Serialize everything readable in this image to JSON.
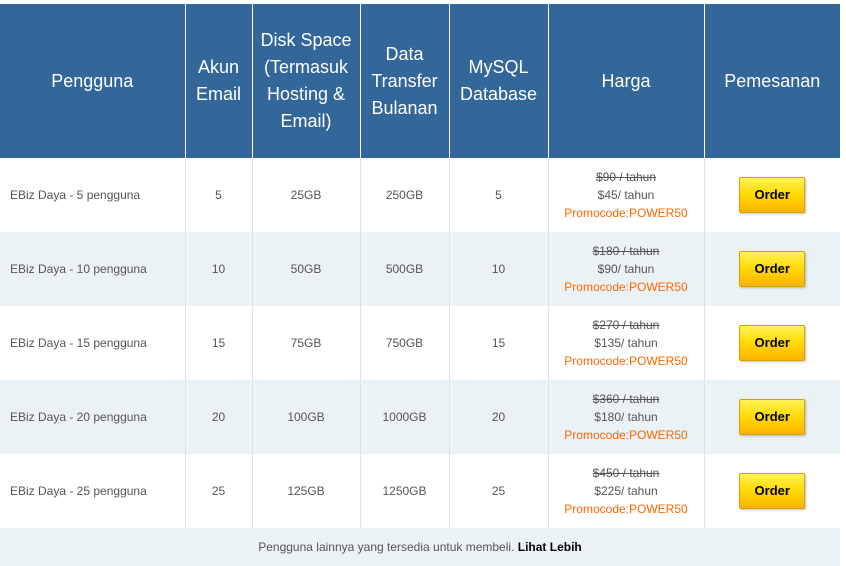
{
  "header": {
    "columns": [
      "Pengguna",
      "Akun Email",
      "Disk Space (Termasuk Hosting & Email)",
      "Data Transfer Bulanan",
      "MySQL Database",
      "Harga",
      "Pemesanan"
    ]
  },
  "rows": [
    {
      "user": "EBiz Daya - 5 pengguna",
      "email": "5",
      "disk": "25GB",
      "transfer": "250GB",
      "mysql": "5",
      "price_old": "$90 / tahun",
      "price_new": "$45/ tahun",
      "promo": "Promocode:POWER50",
      "order": "Order"
    },
    {
      "user": "EBiz Daya - 10 pengguna",
      "email": "10",
      "disk": "50GB",
      "transfer": "500GB",
      "mysql": "10",
      "price_old": "$180 / tahun",
      "price_new": "$90/ tahun",
      "promo": "Promocode:POWER50",
      "order": "Order"
    },
    {
      "user": "EBiz Daya - 15 pengguna",
      "email": "15",
      "disk": "75GB",
      "transfer": "750GB",
      "mysql": "15",
      "price_old": "$270 / tahun",
      "price_new": "$135/ tahun",
      "promo": "Promocode:POWER50",
      "order": "Order"
    },
    {
      "user": "EBiz Daya - 20 pengguna",
      "email": "20",
      "disk": "100GB",
      "transfer": "1000GB",
      "mysql": "20",
      "price_old": "$360 / tahun",
      "price_new": "$180/ tahun",
      "promo": "Promocode:POWER50",
      "order": "Order"
    },
    {
      "user": "EBiz Daya - 25 pengguna",
      "email": "25",
      "disk": "125GB",
      "transfer": "1250GB",
      "mysql": "25",
      "price_old": "$450 / tahun",
      "price_new": "$225/ tahun",
      "promo": "Promocode:POWER50",
      "order": "Order"
    }
  ],
  "footer": {
    "text": "Pengguna lainnya yang tersedia untuk membeli.",
    "link": "Lihat Lebih"
  },
  "colors": {
    "header_bg": "#336699",
    "alt_row_bg": "#eaf2f6",
    "promo": "#ff6600",
    "button": "#ffd800"
  }
}
